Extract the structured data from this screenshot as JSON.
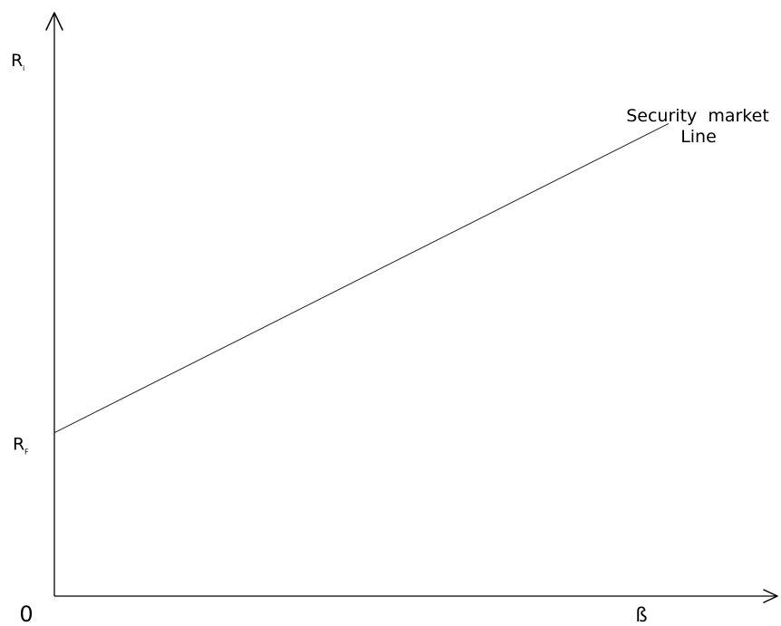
{
  "chart_data": {
    "type": "line",
    "title": "",
    "xlabel": "ß",
    "ylabel_main": "R",
    "ylabel_sub": "i",
    "origin_label": "0",
    "rf_label_main": "R",
    "rf_label_sub": "F",
    "series": [
      {
        "name_line1": "Security  market",
        "name_line2": "Line",
        "start": {
          "x": 0,
          "y": 0.28
        },
        "end": {
          "x": 0.96,
          "y": 0.81
        }
      }
    ],
    "xlim": [
      0,
      1.13
    ],
    "ylim": [
      0,
      1
    ],
    "grid": false,
    "colors": {
      "axis": "#000000",
      "line": "#222222"
    }
  }
}
